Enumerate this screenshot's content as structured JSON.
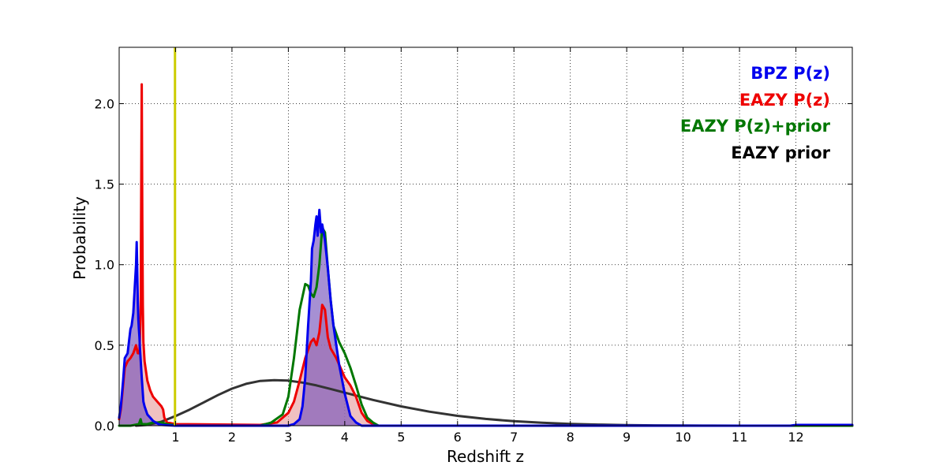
{
  "chart_data": {
    "type": "line",
    "title": "",
    "xlabel": "Redshift z",
    "ylabel": "Probability",
    "xlim": [
      0,
      13
    ],
    "ylim": [
      0,
      2.35
    ],
    "xticks": [
      1,
      2,
      3,
      4,
      5,
      6,
      7,
      8,
      9,
      10,
      11,
      12
    ],
    "yticks": [
      0.0,
      0.5,
      1.0,
      1.5,
      2.0
    ],
    "xtick_labels": [
      "1",
      "2",
      "3",
      "4",
      "5",
      "6",
      "7",
      "8",
      "9",
      "10",
      "11",
      "12"
    ],
    "ytick_labels": [
      "0.0",
      "0.5",
      "1.0",
      "1.5",
      "2.0"
    ],
    "grid": true,
    "legend_position": "top-right",
    "vertical_line": {
      "x": 0.99,
      "color": "#cccc00"
    },
    "series": [
      {
        "name": "EAZY prior",
        "color": "#333333",
        "filled": false,
        "x": [
          0.3,
          0.5,
          0.75,
          1.0,
          1.25,
          1.5,
          1.75,
          2.0,
          2.25,
          2.5,
          2.75,
          3.0,
          3.25,
          3.5,
          3.75,
          4.0,
          4.5,
          5.0,
          5.5,
          6.0,
          6.5,
          7.0,
          7.5,
          8.0,
          8.5,
          9.0,
          9.5,
          10.0,
          10.5,
          11.0,
          11.5,
          12.0
        ],
        "y": [
          0.0,
          0.005,
          0.025,
          0.06,
          0.1,
          0.145,
          0.19,
          0.23,
          0.26,
          0.278,
          0.283,
          0.28,
          0.268,
          0.25,
          0.228,
          0.205,
          0.16,
          0.12,
          0.087,
          0.061,
          0.042,
          0.028,
          0.018,
          0.011,
          0.007,
          0.004,
          0.002,
          0.001,
          0.0005,
          0.0002,
          0.0001,
          0.0
        ]
      },
      {
        "name": "EAZY P(z)",
        "color": "#ee0000",
        "fill": "#e8a0a0",
        "filled": true,
        "x": [
          0.0,
          0.03,
          0.07,
          0.1,
          0.15,
          0.2,
          0.25,
          0.28,
          0.3,
          0.33,
          0.36,
          0.38,
          0.39,
          0.4,
          0.41,
          0.42,
          0.43,
          0.45,
          0.5,
          0.55,
          0.6,
          0.7,
          0.75,
          0.78,
          0.8,
          0.85,
          1.0,
          2.5,
          2.8,
          3.0,
          3.1,
          3.2,
          3.3,
          3.4,
          3.45,
          3.5,
          3.55,
          3.6,
          3.65,
          3.7,
          3.75,
          3.8,
          3.85,
          3.9,
          4.0,
          4.1,
          4.2,
          4.3,
          4.4,
          4.5,
          4.6,
          13.0
        ],
        "y": [
          0.04,
          0.1,
          0.25,
          0.36,
          0.4,
          0.42,
          0.45,
          0.48,
          0.5,
          0.45,
          0.45,
          0.7,
          1.4,
          2.12,
          1.3,
          0.75,
          0.52,
          0.4,
          0.28,
          0.22,
          0.18,
          0.14,
          0.12,
          0.1,
          0.05,
          0.02,
          0.01,
          0.005,
          0.02,
          0.08,
          0.15,
          0.28,
          0.42,
          0.52,
          0.54,
          0.5,
          0.58,
          0.75,
          0.72,
          0.55,
          0.48,
          0.45,
          0.42,
          0.38,
          0.3,
          0.25,
          0.18,
          0.08,
          0.03,
          0.01,
          0.0,
          0.0
        ]
      },
      {
        "name": "EAZY P(z)+prior",
        "color": "#007700",
        "filled": false,
        "x": [
          0.0,
          0.2,
          0.35,
          0.38,
          0.4,
          0.42,
          0.5,
          0.6,
          0.75,
          0.85,
          0.95,
          1.0,
          2.5,
          2.7,
          2.9,
          3.0,
          3.1,
          3.2,
          3.3,
          3.35,
          3.4,
          3.45,
          3.5,
          3.55,
          3.6,
          3.65,
          3.7,
          3.75,
          3.8,
          3.9,
          4.0,
          4.1,
          4.2,
          4.3,
          4.4,
          4.5,
          4.6,
          13.0
        ],
        "y": [
          0.0,
          0.0,
          0.01,
          0.04,
          0.01,
          0.01,
          0.01,
          0.02,
          0.02,
          0.01,
          0.005,
          0.0,
          0.0,
          0.02,
          0.07,
          0.18,
          0.42,
          0.72,
          0.88,
          0.87,
          0.82,
          0.8,
          0.86,
          1.0,
          1.23,
          1.2,
          0.98,
          0.78,
          0.62,
          0.52,
          0.45,
          0.36,
          0.25,
          0.13,
          0.05,
          0.02,
          0.0,
          0.0
        ]
      },
      {
        "name": "BPZ P(z)",
        "color": "#0000ee",
        "fill": "#7755bb",
        "filled": true,
        "x": [
          0.0,
          0.03,
          0.07,
          0.1,
          0.15,
          0.2,
          0.22,
          0.25,
          0.27,
          0.3,
          0.31,
          0.32,
          0.33,
          0.34,
          0.35,
          0.36,
          0.37,
          0.4,
          0.43,
          0.45,
          0.5,
          0.55,
          0.6,
          0.65,
          0.7,
          0.75,
          1.0,
          3.0,
          3.1,
          3.2,
          3.25,
          3.3,
          3.35,
          3.4,
          3.42,
          3.45,
          3.48,
          3.5,
          3.52,
          3.55,
          3.58,
          3.6,
          3.65,
          3.7,
          3.75,
          3.8,
          3.9,
          4.0,
          4.1,
          4.2,
          4.3,
          11.9,
          12.0,
          13.0
        ],
        "y": [
          0.05,
          0.12,
          0.28,
          0.42,
          0.45,
          0.6,
          0.62,
          0.7,
          0.82,
          1.0,
          1.14,
          0.98,
          0.78,
          0.66,
          0.6,
          0.55,
          0.48,
          0.3,
          0.15,
          0.12,
          0.07,
          0.05,
          0.03,
          0.02,
          0.01,
          0.005,
          0.0,
          0.0,
          0.01,
          0.04,
          0.12,
          0.3,
          0.62,
          0.9,
          1.1,
          1.15,
          1.25,
          1.3,
          1.18,
          1.34,
          1.2,
          1.25,
          1.15,
          0.98,
          0.78,
          0.62,
          0.38,
          0.2,
          0.06,
          0.02,
          0.0,
          0.0,
          0.005,
          0.005
        ]
      }
    ]
  },
  "legend": {
    "items": [
      {
        "label": "BPZ P(z)",
        "color": "#0000ee"
      },
      {
        "label": "EAZY P(z)",
        "color": "#ee0000"
      },
      {
        "label": "EAZY P(z)+prior",
        "color": "#007700"
      },
      {
        "label": "EAZY prior",
        "color": "#000000"
      }
    ]
  }
}
